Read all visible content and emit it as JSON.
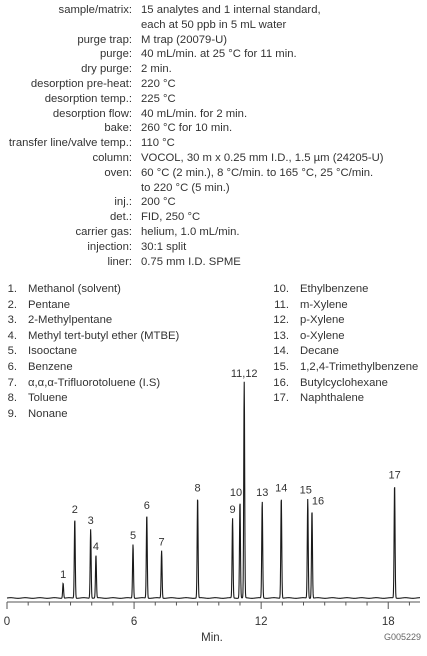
{
  "conditions": [
    {
      "label": "sample/matrix:",
      "value": [
        "15 analytes and 1 internal standard,",
        "each at 50 ppb in 5 mL water"
      ]
    },
    {
      "label": "purge trap:",
      "value": [
        "M trap (20079-U)"
      ]
    },
    {
      "label": "purge:",
      "value": [
        "40 mL/min. at 25 °C for 11 min."
      ]
    },
    {
      "label": "dry purge:",
      "value": [
        "2 min."
      ]
    },
    {
      "label": "desorption pre-heat:",
      "value": [
        "220 °C"
      ]
    },
    {
      "label": "desorption temp.:",
      "value": [
        "225 °C"
      ]
    },
    {
      "label": "desorption flow:",
      "value": [
        "40 mL/min. for 2 min."
      ]
    },
    {
      "label": "bake:",
      "value": [
        "260 °C for 10 min."
      ]
    },
    {
      "label": "transfer line/valve temp.:",
      "value": [
        "110 °C"
      ]
    },
    {
      "label": "column:",
      "value": [
        "VOCOL, 30 m x 0.25 mm I.D., 1.5 µm (24205-U)"
      ]
    },
    {
      "label": "oven:",
      "value": [
        "60 °C (2 min.), 8 °C/min. to 165 °C, 25 °C/min.",
        "to 220 °C (5 min.)"
      ]
    },
    {
      "label": "inj.:",
      "value": [
        "200 °C"
      ]
    },
    {
      "label": "det.:",
      "value": [
        "FID, 250 °C"
      ]
    },
    {
      "label": "carrier gas:",
      "value": [
        "helium, 1.0 mL/min."
      ]
    },
    {
      "label": "injection:",
      "value": [
        "30:1 split"
      ]
    },
    {
      "label": "liner:",
      "value": [
        "0.75 mm I.D. SPME"
      ]
    }
  ],
  "compounds": [
    {
      "num": "1.",
      "name": "Methanol (solvent)"
    },
    {
      "num": "2.",
      "name": "Pentane"
    },
    {
      "num": "3.",
      "name": "2-Methylpentane"
    },
    {
      "num": "4.",
      "name": "Methyl tert-butyl ether (MTBE)"
    },
    {
      "num": "5.",
      "name": "Isooctane"
    },
    {
      "num": "6.",
      "name": "Benzene"
    },
    {
      "num": "7.",
      "name": "α,α,α-Trifluorotoluene (I.S)"
    },
    {
      "num": "8.",
      "name": "Toluene"
    },
    {
      "num": "9.",
      "name": "Nonane"
    },
    {
      "num": "10.",
      "name": "Ethylbenzene"
    },
    {
      "num": "11.",
      "name": "m-Xylene"
    },
    {
      "num": "12.",
      "name": "p-Xylene"
    },
    {
      "num": "13.",
      "name": "o-Xylene"
    },
    {
      "num": "14.",
      "name": "Decane"
    },
    {
      "num": "15.",
      "name": "1,2,4-Trimethylbenzene"
    },
    {
      "num": "16.",
      "name": "Butylcyclohexane"
    },
    {
      "num": "17.",
      "name": "Naphthalene"
    }
  ],
  "chart_data": {
    "type": "line",
    "xlabel": "Min.",
    "xlim": [
      0,
      19.5
    ],
    "x_ticks": [
      0,
      6,
      12,
      18
    ],
    "ylim": [
      0,
      100
    ],
    "line_color": "#1a1a1a",
    "peaks": [
      {
        "label": "1",
        "t": 2.65,
        "h": 7
      },
      {
        "label": "2",
        "t": 3.2,
        "h": 37
      },
      {
        "label": "3",
        "t": 3.95,
        "h": 32
      },
      {
        "label": "4",
        "t": 4.2,
        "h": 20
      },
      {
        "label": "5",
        "t": 5.95,
        "h": 25
      },
      {
        "label": "6",
        "t": 6.6,
        "h": 39
      },
      {
        "label": "7",
        "t": 7.3,
        "h": 22
      },
      {
        "label": "8",
        "t": 9.0,
        "h": 47
      },
      {
        "label": "9",
        "t": 10.65,
        "h": 37
      },
      {
        "label": "10",
        "t": 11.0,
        "h": 45
      },
      {
        "label": "11,12",
        "t": 11.2,
        "h": 100
      },
      {
        "label": "13",
        "t": 12.05,
        "h": 45
      },
      {
        "label": "14",
        "t": 12.95,
        "h": 47
      },
      {
        "label": "15",
        "t": 14.2,
        "h": 46
      },
      {
        "label": "16",
        "t": 14.4,
        "h": 41
      },
      {
        "label": "17",
        "t": 18.3,
        "h": 53
      }
    ]
  },
  "figure_code": "G005229"
}
